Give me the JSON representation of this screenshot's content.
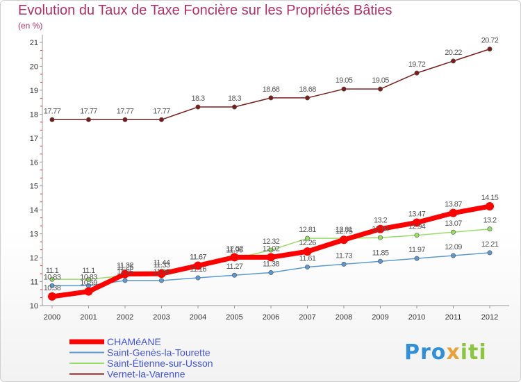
{
  "chart_data": {
    "type": "line",
    "title": "Evolution du Taux de Taxe Foncière sur les Propriétés Bâties",
    "subtitle": "(en %)",
    "x": [
      "2000",
      "2001",
      "2002",
      "2003",
      "2004",
      "2005",
      "2006",
      "2007",
      "2008",
      "2009",
      "2010",
      "2011",
      "2012"
    ],
    "ylim": [
      10,
      21
    ],
    "yticks": [
      10,
      11,
      12,
      13,
      14,
      15,
      16,
      17,
      18,
      19,
      20,
      21
    ],
    "grid": false,
    "legend_position": "bottom-left",
    "series": [
      {
        "name": "CHAMéANE",
        "color": "#ff0000",
        "values": [
          10.38,
          10.59,
          11.32,
          11.33,
          11.67,
          12.02,
          12.02,
          12.26,
          12.75,
          13.2,
          13.47,
          13.87,
          14.15
        ],
        "labels": [
          "10.38",
          "10.59",
          "11.32",
          "11.33",
          "11.67",
          "12.02",
          "12.02",
          "12.26",
          "12.75",
          "13.2",
          "13.47",
          "13.87",
          "14.15"
        ]
      },
      {
        "name": "Saint-Genès-la-Tourette",
        "color": "#5d99cf",
        "values": [
          10.83,
          10.83,
          11.05,
          11.05,
          11.16,
          11.27,
          11.38,
          11.61,
          11.73,
          11.85,
          11.97,
          12.09,
          12.21
        ],
        "labels": [
          "10.83",
          "10.83",
          "11.05",
          "11.05",
          "11.16",
          "11.27",
          "11.38",
          "11.61",
          "11.73",
          "11.85",
          "11.97",
          "12.09",
          "12.21"
        ]
      },
      {
        "name": "Saint-Étienne-sur-Usson",
        "color": "#99dd66",
        "values": [
          11.1,
          11.1,
          11.25,
          11.44,
          11.67,
          11.96,
          12.32,
          12.81,
          12.81,
          12.84,
          12.94,
          13.07,
          13.2
        ],
        "labels": [
          "11.1",
          "11.1",
          "11.25",
          "11.44",
          "11.67",
          "11.96",
          "12.32",
          "12.81",
          "12.81",
          "12.84",
          "12.94",
          "13.07",
          "13.2"
        ]
      },
      {
        "name": "Vernet-la-Varenne",
        "color": "#7a1c1c",
        "values": [
          17.77,
          17.77,
          17.77,
          17.77,
          18.3,
          18.3,
          18.68,
          18.68,
          19.05,
          19.05,
          19.72,
          20.22,
          20.72
        ],
        "labels": [
          "17.77",
          "17.77",
          "17.77",
          "17.77",
          "18.3",
          "18.3",
          "18.68",
          "18.68",
          "19.05",
          "19.05",
          "19.72",
          "20.22",
          "20.72"
        ]
      }
    ]
  },
  "logo": {
    "p1": "Pro",
    "p2": "x",
    "p3": "iti"
  }
}
